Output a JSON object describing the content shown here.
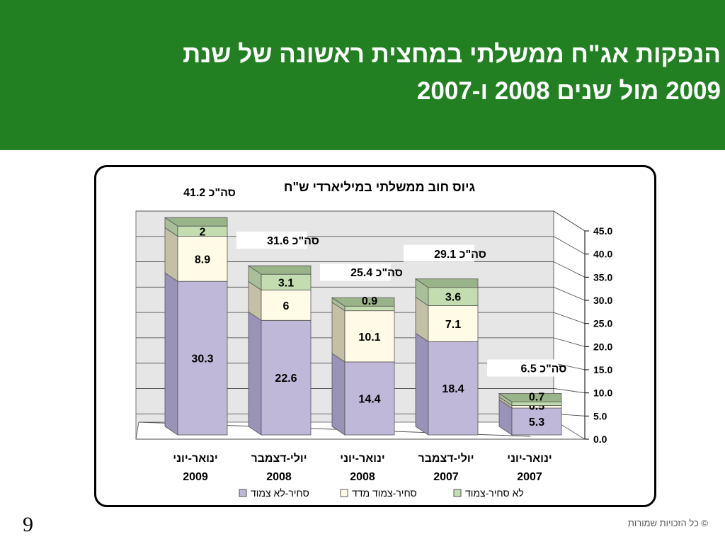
{
  "slide": {
    "title_line1": "הנפקות אג\"ח ממשלתי במחצית ראשונה של שנת",
    "title_line2": "2009 מול שנים 2008 ו-2007",
    "page_number": "9",
    "copyright": "© כל הזכויות שמורות"
  },
  "colors": {
    "header_bg": "#228022",
    "series": [
      "#c0b8d8",
      "#fffbe6",
      "#c3ddb0"
    ],
    "series_side": [
      "#9a93b8",
      "#c4c0a6",
      "#a9bf98"
    ],
    "series_top": [
      "#b0a8cc",
      "#ddd9be",
      "#9ab48a"
    ]
  },
  "chart_data": {
    "type": "bar",
    "stacked": true,
    "title": "גיוס חוב ממשלתי במיליארדי ש\"ח",
    "categories": [
      [
        "ינואר-יוני",
        "2009"
      ],
      [
        "יולי-דצמבר",
        "2008"
      ],
      [
        "ינואר-יוני",
        "2008"
      ],
      [
        "יולי-דצמבר",
        "2007"
      ],
      [
        "ינואר-יוני",
        "2007"
      ]
    ],
    "series": [
      {
        "name": "סחיר-לא צמוד",
        "values": [
          30.3,
          22.6,
          14.4,
          18.4,
          5.3
        ]
      },
      {
        "name": "סחיר-צמוד מדד",
        "values": [
          8.9,
          6,
          10.1,
          7.1,
          0.5
        ]
      },
      {
        "name": "לא סחיר-צמוד",
        "values": [
          2,
          3.1,
          0.9,
          3.6,
          0.7
        ]
      }
    ],
    "value_labels": [
      [
        "30.3",
        "22.6",
        "14.4",
        "18.4",
        "5.3"
      ],
      [
        "8.9",
        "6",
        "10.1",
        "7.1",
        "0.5"
      ],
      [
        "2",
        "3.1",
        "0.9",
        "3.6",
        "0.7"
      ]
    ],
    "totals": [
      "סה\"כ 41.2",
      "סה\"כ 31.6",
      "סה\"כ 25.4",
      "סה\"כ 29.1",
      "סה\"כ 6.5"
    ],
    "ylim": [
      0,
      45
    ],
    "yticks": [
      "0.0",
      "5.0",
      "10.0",
      "15.0",
      "20.0",
      "25.0",
      "30.0",
      "35.0",
      "40.0",
      "45.0"
    ],
    "ytick_values": [
      0,
      5,
      10,
      15,
      20,
      25,
      30,
      35,
      40,
      45
    ],
    "y_axis_side": "right",
    "grid": true,
    "legend_position": "bottom",
    "three_d": true
  }
}
